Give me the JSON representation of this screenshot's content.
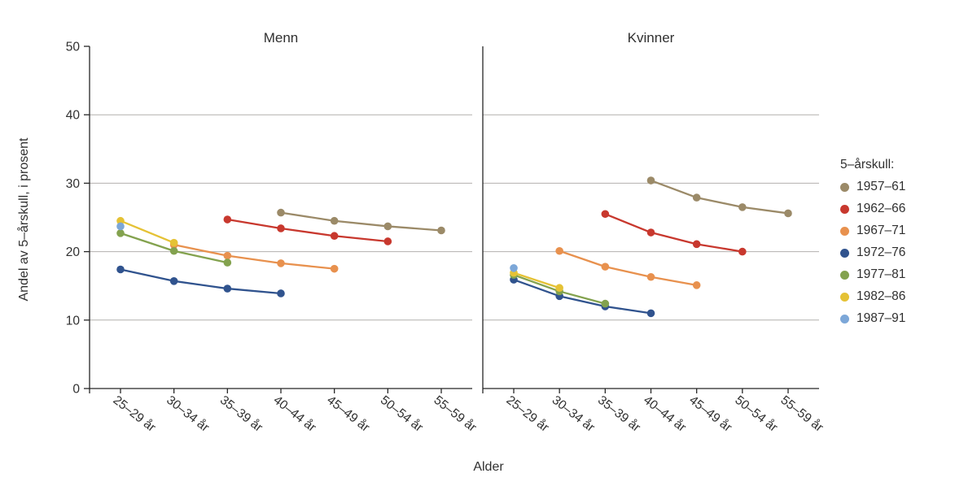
{
  "chart_data": {
    "type": "line",
    "title": "",
    "xlabel": "Alder",
    "ylabel": "Andel av 5–årskull, i prosent",
    "ylim": [
      0,
      50
    ],
    "yticks": [
      0,
      10,
      20,
      30,
      40,
      50
    ],
    "gridlines": [
      10,
      20,
      30,
      40
    ],
    "grid": "horizontal",
    "categories": [
      "25–29 år",
      "30–34 år",
      "35–39 år",
      "40–44 år",
      "45–49 år",
      "50–54 år",
      "55–59 år"
    ],
    "legend": {
      "title": "5–årskull:",
      "position": "right",
      "entries": [
        {
          "label": "1957–61",
          "color": "#9b8a68"
        },
        {
          "label": "1962–66",
          "color": "#c8382e"
        },
        {
          "label": "1967–71",
          "color": "#e8914e"
        },
        {
          "label": "1972–76",
          "color": "#30538e"
        },
        {
          "label": "1977–81",
          "color": "#83a24e"
        },
        {
          "label": "1982–86",
          "color": "#e5c235"
        },
        {
          "label": "1987–91",
          "color": "#7ca7d8"
        }
      ]
    },
    "facets": [
      {
        "title": "Menn",
        "series": [
          {
            "name": "1957–61",
            "start": 3,
            "values": [
              25.7,
              24.5,
              23.7,
              23.1
            ]
          },
          {
            "name": "1962–66",
            "start": 2,
            "values": [
              24.7,
              23.4,
              22.3,
              21.5
            ]
          },
          {
            "name": "1967–71",
            "start": 1,
            "values": [
              21.0,
              19.4,
              18.3,
              17.5
            ]
          },
          {
            "name": "1972–76",
            "start": 0,
            "values": [
              17.4,
              15.7,
              14.6,
              13.9
            ]
          },
          {
            "name": "1977–81",
            "start": 0,
            "values": [
              22.7,
              20.1,
              18.4
            ]
          },
          {
            "name": "1982–86",
            "start": 0,
            "values": [
              24.5,
              21.3
            ]
          },
          {
            "name": "1987–91",
            "start": 0,
            "values": [
              23.7
            ]
          }
        ]
      },
      {
        "title": "Kvinner",
        "series": [
          {
            "name": "1957–61",
            "start": 3,
            "values": [
              30.4,
              27.9,
              26.5,
              25.6
            ]
          },
          {
            "name": "1962–66",
            "start": 2,
            "values": [
              25.5,
              22.8,
              21.1,
              20.0
            ]
          },
          {
            "name": "1967–71",
            "start": 1,
            "values": [
              20.1,
              17.8,
              16.3,
              15.1
            ]
          },
          {
            "name": "1972–76",
            "start": 0,
            "values": [
              15.9,
              13.5,
              12.0,
              11.0
            ]
          },
          {
            "name": "1977–81",
            "start": 0,
            "values": [
              16.6,
              14.2,
              12.4
            ]
          },
          {
            "name": "1982–86",
            "start": 0,
            "values": [
              16.9,
              14.7
            ]
          },
          {
            "name": "1987–91",
            "start": 0,
            "values": [
              17.6
            ]
          }
        ]
      }
    ]
  }
}
